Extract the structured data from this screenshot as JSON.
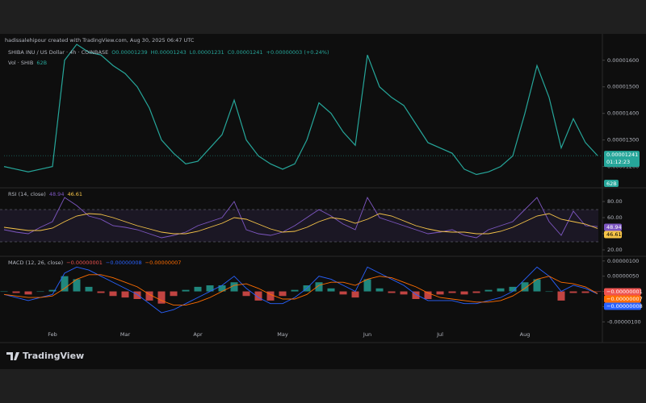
{
  "header": {
    "attribution": "hadissalehipour created with TradingView.com, Aug 30, 2025 06:47 UTC"
  },
  "footer": {
    "logo": "TradingView"
  },
  "chart_data": [
    {
      "type": "line",
      "title": "SHIBA INU / US Dollar · 4h · COINBASE",
      "legend": [
        "O0.00001239",
        "H0.00001243",
        "L0.00001231",
        "C0.00001241",
        "+0.00000003 (+0.24%)"
      ],
      "volume_label": "Vol · SHIB",
      "volume_value": "62B",
      "countdown": "01:12:23",
      "ylim": [
        1.12e-05,
        1.66e-05
      ],
      "yticks": [
        {
          "value": 1.2e-05,
          "label": "0.00001200"
        },
        {
          "value": 1.3e-05,
          "label": "0.00001300"
        },
        {
          "value": 1.4e-05,
          "label": "0.00001400"
        },
        {
          "value": 1.5e-05,
          "label": "0.00001500"
        },
        {
          "value": 1.6e-05,
          "label": "0.00001600"
        }
      ],
      "series": [
        {
          "color": "#26a69a",
          "values": [
            1.2e-05,
            1.19e-05,
            1.18e-05,
            1.19e-05,
            1.2e-05,
            1.6e-05,
            1.66e-05,
            1.63e-05,
            1.62e-05,
            1.58e-05,
            1.55e-05,
            1.5e-05,
            1.42e-05,
            1.3e-05,
            1.25e-05,
            1.21e-05,
            1.22e-05,
            1.27e-05,
            1.32e-05,
            1.45e-05,
            1.3e-05,
            1.24e-05,
            1.21e-05,
            1.19e-05,
            1.21e-05,
            1.3e-05,
            1.44e-05,
            1.4e-05,
            1.33e-05,
            1.28e-05,
            1.62e-05,
            1.5e-05,
            1.46e-05,
            1.43e-05,
            1.36e-05,
            1.29e-05,
            1.27e-05,
            1.25e-05,
            1.19e-05,
            1.17e-05,
            1.18e-05,
            1.2e-05,
            1.24e-05,
            1.4e-05,
            1.58e-05,
            1.46e-05,
            1.27e-05,
            1.38e-05,
            1.29e-05,
            1.241e-05
          ]
        }
      ]
    },
    {
      "type": "line",
      "title": "RSI (14, close)",
      "ylim": [
        12,
        95
      ],
      "band": [
        30,
        70
      ],
      "yticks": [
        {
          "value": 20,
          "label": "20.00"
        },
        {
          "value": 40,
          "label": "40.00"
        },
        {
          "value": 60,
          "label": "60.00"
        },
        {
          "value": 80,
          "label": "80.00"
        }
      ],
      "series": [
        {
          "color": "#7e57c2",
          "values": [
            45,
            42,
            40,
            48,
            55,
            85,
            75,
            62,
            58,
            50,
            48,
            45,
            40,
            35,
            38,
            42,
            50,
            55,
            60,
            80,
            45,
            40,
            38,
            42,
            50,
            60,
            70,
            62,
            52,
            45,
            85,
            60,
            55,
            50,
            45,
            40,
            42,
            45,
            38,
            35,
            45,
            50,
            55,
            70,
            85,
            55,
            38,
            68,
            50,
            48.94
          ]
        },
        {
          "color": "#f7c548",
          "values": [
            48,
            46,
            44,
            44,
            47,
            55,
            62,
            65,
            64,
            60,
            55,
            50,
            46,
            42,
            40,
            40,
            43,
            48,
            53,
            60,
            58,
            52,
            46,
            42,
            43,
            48,
            55,
            60,
            58,
            53,
            58,
            65,
            62,
            56,
            50,
            46,
            43,
            42,
            42,
            40,
            40,
            43,
            48,
            55,
            62,
            65,
            58,
            55,
            52,
            46.61
          ]
        }
      ]
    },
    {
      "type": "macd",
      "title": "MACD (12, 26, close)",
      "legend": [
        "−0.00000001",
        "−0.00000008",
        "−0.00000007"
      ],
      "ylim": [
        -1.6e-06,
        1.1e-06
      ],
      "yticks": [
        {
          "value": -1e-06,
          "label": "-0.00000100"
        },
        {
          "value": -5e-07,
          "label": "-0.00000050"
        },
        {
          "value": 0,
          "label": "0.00000000"
        },
        {
          "value": 5e-07,
          "label": "0.00000050"
        },
        {
          "value": 1e-06,
          "label": "0.00000100"
        }
      ],
      "categories": [
        null,
        null,
        null,
        null,
        "Feb",
        null,
        null,
        null,
        null,
        null,
        "Mar",
        null,
        null,
        null,
        null,
        null,
        "Apr",
        null,
        null,
        null,
        null,
        null,
        null,
        "May",
        null,
        null,
        null,
        null,
        null,
        null,
        "Jun",
        null,
        null,
        null,
        null,
        null,
        "Jul",
        null,
        null,
        null,
        null,
        null,
        null,
        "Aug",
        null,
        null,
        null,
        null,
        null,
        null
      ],
      "series": [
        {
          "color": "#ef5350",
          "style": "histogram",
          "values": [
            0,
            -5e-08,
            -1e-07,
            0,
            5e-08,
            5e-07,
            4e-07,
            1.5e-07,
            -5e-08,
            -1.5e-07,
            -2e-07,
            -2.5e-07,
            -3e-07,
            -4e-07,
            -1.5e-07,
            5e-08,
            1.5e-07,
            2e-07,
            2e-07,
            3e-07,
            -1.5e-07,
            -3e-07,
            -3e-07,
            -1.5e-07,
            5e-08,
            2e-07,
            3e-07,
            1e-07,
            -1e-07,
            -2e-07,
            4e-07,
            1e-07,
            -5e-08,
            -1e-07,
            -2.5e-07,
            -2.5e-07,
            -1e-07,
            -5e-08,
            -1e-07,
            -5e-08,
            5e-08,
            1e-07,
            1.5e-07,
            3e-07,
            4e-07,
            0,
            -3e-07,
            -5e-08,
            -5e-08,
            -1e-08
          ]
        },
        {
          "color": "#2962ff",
          "values": [
            -1e-07,
            -2e-07,
            -3e-07,
            -2e-07,
            -1e-07,
            6e-07,
            8e-07,
            7e-07,
            5e-07,
            3e-07,
            1e-07,
            -1e-07,
            -4e-07,
            -7e-07,
            -6e-07,
            -4e-07,
            -2e-07,
            0,
            2e-07,
            5e-07,
            1e-07,
            -2e-07,
            -4e-07,
            -4e-07,
            -2e-07,
            1e-07,
            5e-07,
            4e-07,
            2e-07,
            0,
            8e-07,
            6e-07,
            4e-07,
            2e-07,
            -1e-07,
            -3e-07,
            -3e-07,
            -3e-07,
            -4e-07,
            -4e-07,
            -3e-07,
            -2e-07,
            0,
            4e-07,
            8e-07,
            5e-07,
            0,
            2e-07,
            1e-07,
            -8e-08
          ]
        },
        {
          "color": "#ff6d00",
          "values": [
            -1e-07,
            -1.5e-07,
            -2e-07,
            -2e-07,
            -1.5e-07,
            1e-07,
            4e-07,
            5.5e-07,
            5.5e-07,
            4.5e-07,
            3e-07,
            1.5e-07,
            -1e-07,
            -3e-07,
            -4.5e-07,
            -4.5e-07,
            -3.5e-07,
            -2e-07,
            0,
            2e-07,
            2.5e-07,
            1e-07,
            -1e-07,
            -2.5e-07,
            -2.5e-07,
            -1e-07,
            2e-07,
            3e-07,
            3e-07,
            2e-07,
            4e-07,
            5e-07,
            4.5e-07,
            3e-07,
            1.5e-07,
            -5e-08,
            -2e-07,
            -2.5e-07,
            -3e-07,
            -3.5e-07,
            -3.5e-07,
            -3e-07,
            -1.5e-07,
            1e-07,
            4e-07,
            5e-07,
            3e-07,
            2.5e-07,
            1.5e-07,
            -7e-08
          ]
        }
      ]
    }
  ]
}
